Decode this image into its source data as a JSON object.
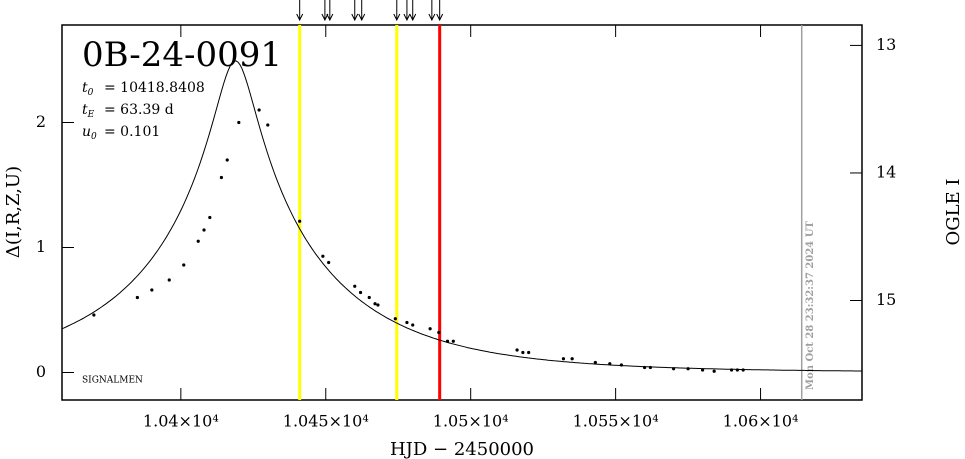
{
  "chart_data": {
    "type": "scatter",
    "title": "0B-24-0091",
    "params": [
      {
        "symbol": "t",
        "sub": "0",
        "value": 10418.8408,
        "text": "= 10418.8408"
      },
      {
        "symbol": "t",
        "sub": "E",
        "value": 63.39,
        "text": "= 63.39 d"
      },
      {
        "symbol": "u",
        "sub": "0",
        "value": 0.101,
        "text": "= 0.101"
      }
    ],
    "footnote": "SIGNALMEN",
    "timestamp": "Mon Oct 28 23:32:37 2024 UT",
    "xlabel": "HJD − 2450000",
    "ylabel": "Δ(I,R,Z,U)",
    "y2label": "OGLE I",
    "xlim": [
      10359,
      10635
    ],
    "ylim": [
      -0.22,
      2.78
    ],
    "y2lim": [
      12.84,
      15.78
    ],
    "xticks": [
      {
        "value": 10400,
        "label": "1.04×10⁴"
      },
      {
        "value": 10450,
        "label": "1.045×10⁴"
      },
      {
        "value": 10500,
        "label": "1.05×10⁴"
      },
      {
        "value": 10550,
        "label": "1.055×10⁴"
      },
      {
        "value": 10600,
        "label": "1.06×10⁴"
      }
    ],
    "yticks": [
      0,
      1,
      2
    ],
    "y2ticks": [
      13,
      14,
      15
    ],
    "x": [
      10370,
      10385,
      10390,
      10396,
      10401,
      10406,
      10408,
      10410,
      10414,
      10416,
      10420,
      10427,
      10430,
      10441,
      10449,
      10451,
      10460,
      10462,
      10465,
      10467,
      10468,
      10474,
      10478,
      10480,
      10486,
      10489,
      10492,
      10494,
      10516,
      10518,
      10520,
      10532,
      10535,
      10543,
      10548,
      10552,
      10560,
      10562,
      10570,
      10575,
      10580,
      10584,
      10590,
      10592,
      10594
    ],
    "values": [
      0.46,
      0.6,
      0.66,
      0.74,
      0.86,
      1.05,
      1.14,
      1.24,
      1.56,
      1.7,
      2.0,
      2.1,
      1.98,
      1.21,
      0.93,
      0.88,
      0.69,
      0.64,
      0.6,
      0.55,
      0.54,
      0.43,
      0.4,
      0.38,
      0.35,
      0.32,
      0.25,
      0.25,
      0.18,
      0.16,
      0.16,
      0.11,
      0.11,
      0.08,
      0.07,
      0.06,
      0.04,
      0.04,
      0.03,
      0.03,
      0.02,
      0.01,
      0.02,
      0.02,
      0.02
    ],
    "color": "#000000",
    "vlines": [
      {
        "x": 10441,
        "color": "#ffff00"
      },
      {
        "x": 10474.5,
        "color": "#ffff00"
      },
      {
        "x": 10489.3,
        "color": "#ff0000"
      },
      {
        "x": 10614.2,
        "color": "#a0a0a0"
      }
    ],
    "arrows": [
      10441,
      10449.7,
      10451.4,
      10460,
      10462.4,
      10474.5,
      10478,
      10480,
      10486.6,
      10489.3
    ]
  }
}
